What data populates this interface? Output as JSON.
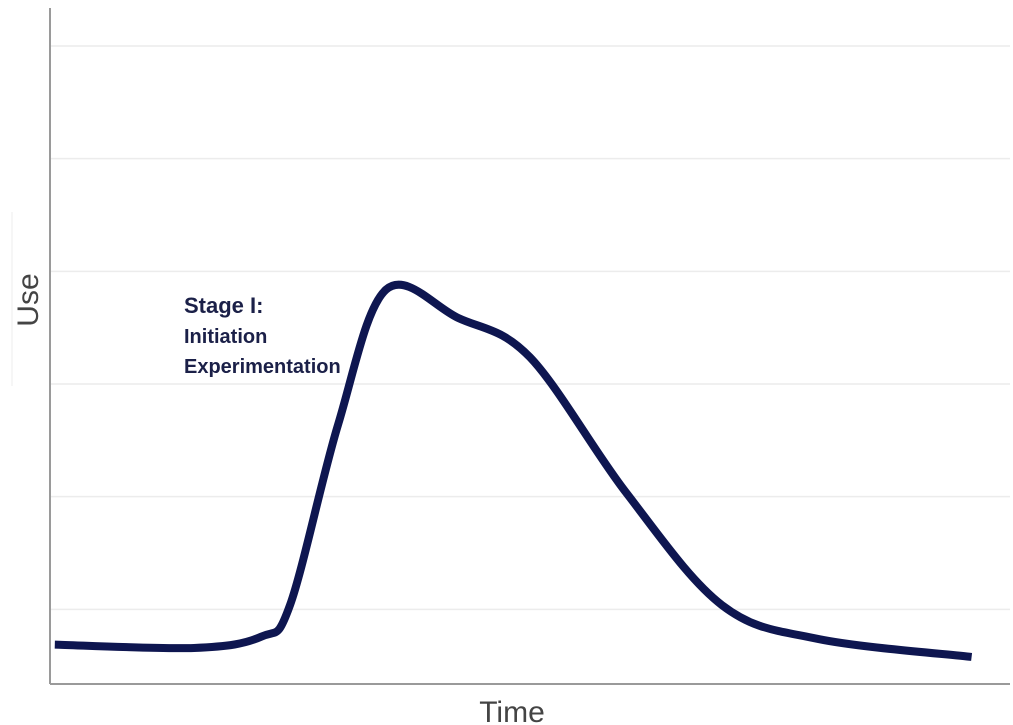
{
  "chart_data": {
    "type": "line",
    "title": "",
    "xlabel": "Time",
    "ylabel": "Use",
    "grid": true,
    "ylim": [
      0,
      6
    ],
    "xlim": [
      0,
      10
    ],
    "series": [
      {
        "values_xy": [
          [
            0.05,
            0.35
          ],
          [
            1.5,
            0.32
          ],
          [
            2.2,
            0.42
          ],
          [
            2.5,
            0.7
          ],
          [
            3.0,
            2.3
          ],
          [
            3.5,
            3.5
          ],
          [
            4.25,
            3.25
          ],
          [
            5.0,
            2.9
          ],
          [
            6.0,
            1.7
          ],
          [
            7.0,
            0.7
          ],
          [
            8.0,
            0.4
          ],
          [
            9.6,
            0.24
          ]
        ],
        "color": "#0e1650"
      }
    ],
    "annotations": [
      {
        "title": "Stage I:",
        "lines": [
          "Initiation",
          "Experimentation"
        ]
      }
    ]
  }
}
